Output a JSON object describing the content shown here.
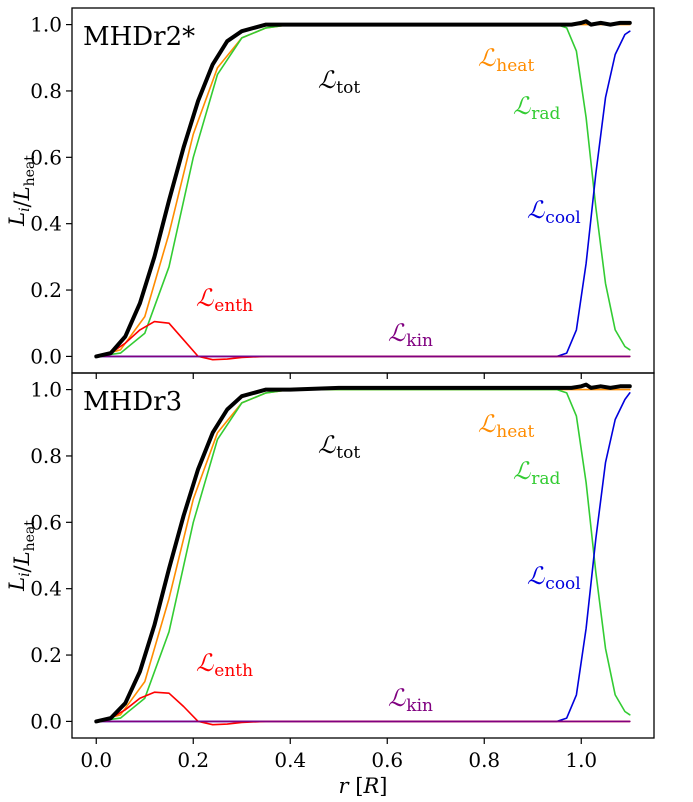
{
  "chart_data": [
    {
      "type": "line",
      "title": "MHDr2*",
      "xlabel": "",
      "ylabel": "L_i/L_heat",
      "xlim": [
        -0.05,
        1.15
      ],
      "ylim": [
        -0.05,
        1.05
      ],
      "y_ticks": [
        "0.0",
        "0.2",
        "0.4",
        "0.6",
        "0.8",
        "1.0"
      ],
      "x_ticks": [],
      "series": [
        {
          "name": "L_heat",
          "label_main": "ℒ",
          "label_sub": "heat",
          "color": "#ff8c00",
          "x": [
            0.0,
            0.05,
            0.1,
            0.15,
            0.2,
            0.25,
            0.3,
            0.35,
            0.4,
            0.5,
            0.6,
            0.7,
            0.8,
            0.9,
            0.95,
            1.0,
            1.05,
            1.1
          ],
          "y": [
            0.0,
            0.02,
            0.12,
            0.37,
            0.67,
            0.87,
            0.96,
            0.99,
            1.0,
            1.0,
            1.0,
            1.0,
            1.0,
            1.0,
            1.0,
            1.0,
            1.0,
            1.0
          ]
        },
        {
          "name": "L_rad",
          "label_main": "ℒ",
          "label_sub": "rad",
          "color": "#33cc33",
          "x": [
            0.0,
            0.05,
            0.1,
            0.15,
            0.2,
            0.25,
            0.3,
            0.35,
            0.4,
            0.5,
            0.6,
            0.7,
            0.8,
            0.9,
            0.95,
            0.97,
            0.99,
            1.01,
            1.03,
            1.05,
            1.07,
            1.09,
            1.1
          ],
          "y": [
            0.0,
            0.01,
            0.07,
            0.27,
            0.6,
            0.85,
            0.96,
            0.99,
            1.0,
            1.0,
            1.0,
            1.0,
            1.0,
            1.0,
            1.0,
            0.99,
            0.92,
            0.72,
            0.45,
            0.22,
            0.08,
            0.03,
            0.02
          ]
        },
        {
          "name": "L_cool",
          "label_main": "ℒ",
          "label_sub": "cool",
          "color": "#0000dd",
          "x": [
            0.0,
            0.2,
            0.4,
            0.6,
            0.8,
            0.9,
            0.95,
            0.97,
            0.99,
            1.01,
            1.03,
            1.05,
            1.07,
            1.09,
            1.1
          ],
          "y": [
            0.0,
            0.0,
            0.0,
            0.0,
            0.0,
            0.0,
            0.0,
            0.01,
            0.08,
            0.28,
            0.55,
            0.78,
            0.91,
            0.97,
            0.98
          ]
        },
        {
          "name": "L_enth",
          "label_main": "ℒ",
          "label_sub": "enth",
          "color": "#ff0000",
          "x": [
            0.0,
            0.03,
            0.06,
            0.09,
            0.12,
            0.15,
            0.18,
            0.21,
            0.24,
            0.27,
            0.3,
            0.35,
            0.4,
            0.6,
            0.8,
            1.0,
            1.1
          ],
          "y": [
            0.0,
            0.01,
            0.04,
            0.08,
            0.105,
            0.1,
            0.05,
            0.0,
            -0.01,
            -0.008,
            -0.003,
            0.0,
            0.0,
            0.0,
            0.0,
            0.0,
            0.0
          ]
        },
        {
          "name": "L_kin",
          "label_main": "ℒ",
          "label_sub": "kin",
          "color": "#800080",
          "x": [
            0.0,
            0.2,
            0.4,
            0.6,
            0.8,
            1.0,
            1.1
          ],
          "y": [
            0.0,
            0.0,
            0.0,
            0.0,
            0.0,
            0.0,
            0.0
          ]
        },
        {
          "name": "L_tot",
          "label_main": "ℒ",
          "label_sub": "tot",
          "color": "#000000",
          "x": [
            0.0,
            0.03,
            0.06,
            0.09,
            0.12,
            0.15,
            0.18,
            0.21,
            0.24,
            0.27,
            0.3,
            0.35,
            0.4,
            0.5,
            0.6,
            0.7,
            0.8,
            0.9,
            0.95,
            0.98,
            1.0,
            1.01,
            1.02,
            1.04,
            1.06,
            1.08,
            1.1
          ],
          "y": [
            0.0,
            0.01,
            0.06,
            0.16,
            0.3,
            0.47,
            0.63,
            0.77,
            0.88,
            0.95,
            0.98,
            1.0,
            1.0,
            1.0,
            1.0,
            1.0,
            1.0,
            1.0,
            1.0,
            1.0,
            1.005,
            1.01,
            1.0,
            1.005,
            1.0,
            1.005,
            1.005
          ]
        }
      ]
    },
    {
      "type": "line",
      "title": "MHDr3",
      "xlabel": "r [R]",
      "ylabel": "L_i/L_heat",
      "xlim": [
        -0.05,
        1.15
      ],
      "ylim": [
        -0.05,
        1.05
      ],
      "y_ticks": [
        "0.0",
        "0.2",
        "0.4",
        "0.6",
        "0.8",
        "1.0"
      ],
      "x_ticks": [
        "0.0",
        "0.2",
        "0.4",
        "0.6",
        "0.8",
        "1.0"
      ],
      "series": [
        {
          "name": "L_heat",
          "label_main": "ℒ",
          "label_sub": "heat",
          "color": "#ff8c00",
          "x": [
            0.0,
            0.05,
            0.1,
            0.15,
            0.2,
            0.25,
            0.3,
            0.35,
            0.4,
            0.5,
            0.6,
            0.7,
            0.8,
            0.9,
            0.95,
            1.0,
            1.05,
            1.1
          ],
          "y": [
            0.0,
            0.02,
            0.12,
            0.37,
            0.67,
            0.87,
            0.96,
            0.99,
            1.0,
            1.0,
            1.0,
            1.0,
            1.0,
            1.0,
            1.0,
            1.0,
            1.0,
            1.0
          ]
        },
        {
          "name": "L_rad",
          "label_main": "ℒ",
          "label_sub": "rad",
          "color": "#33cc33",
          "x": [
            0.0,
            0.05,
            0.1,
            0.15,
            0.2,
            0.25,
            0.3,
            0.35,
            0.4,
            0.5,
            0.6,
            0.7,
            0.8,
            0.9,
            0.95,
            0.97,
            0.99,
            1.01,
            1.03,
            1.05,
            1.07,
            1.09,
            1.1
          ],
          "y": [
            0.0,
            0.01,
            0.07,
            0.27,
            0.6,
            0.85,
            0.96,
            0.99,
            1.0,
            1.0,
            1.0,
            1.0,
            1.0,
            1.0,
            1.0,
            0.99,
            0.92,
            0.72,
            0.45,
            0.22,
            0.08,
            0.03,
            0.02
          ]
        },
        {
          "name": "L_cool",
          "label_main": "ℒ",
          "label_sub": "cool",
          "color": "#0000dd",
          "x": [
            0.0,
            0.2,
            0.4,
            0.6,
            0.8,
            0.9,
            0.95,
            0.97,
            0.99,
            1.01,
            1.03,
            1.05,
            1.07,
            1.09,
            1.1
          ],
          "y": [
            0.0,
            0.0,
            0.0,
            0.0,
            0.0,
            0.0,
            0.0,
            0.01,
            0.08,
            0.28,
            0.55,
            0.78,
            0.91,
            0.97,
            0.99
          ]
        },
        {
          "name": "L_enth",
          "label_main": "ℒ",
          "label_sub": "enth",
          "color": "#ff0000",
          "x": [
            0.0,
            0.03,
            0.06,
            0.09,
            0.12,
            0.15,
            0.18,
            0.21,
            0.24,
            0.27,
            0.3,
            0.35,
            0.4,
            0.6,
            0.8,
            1.0,
            1.1
          ],
          "y": [
            0.0,
            0.01,
            0.035,
            0.07,
            0.088,
            0.085,
            0.045,
            0.0,
            -0.01,
            -0.008,
            -0.003,
            0.0,
            0.0,
            0.0,
            0.0,
            0.0,
            0.0
          ]
        },
        {
          "name": "L_kin",
          "label_main": "ℒ",
          "label_sub": "kin",
          "color": "#800080",
          "x": [
            0.0,
            0.2,
            0.4,
            0.6,
            0.8,
            1.0,
            1.1
          ],
          "y": [
            0.0,
            0.0,
            0.0,
            0.0,
            0.0,
            0.0,
            0.0
          ]
        },
        {
          "name": "L_tot",
          "label_main": "ℒ",
          "label_sub": "tot",
          "color": "#000000",
          "x": [
            0.0,
            0.03,
            0.06,
            0.09,
            0.12,
            0.15,
            0.18,
            0.21,
            0.24,
            0.27,
            0.3,
            0.35,
            0.4,
            0.5,
            0.6,
            0.7,
            0.8,
            0.9,
            0.95,
            0.98,
            1.0,
            1.01,
            1.02,
            1.04,
            1.06,
            1.08,
            1.1
          ],
          "y": [
            0.0,
            0.01,
            0.055,
            0.15,
            0.29,
            0.46,
            0.62,
            0.76,
            0.87,
            0.94,
            0.98,
            1.0,
            1.0,
            1.005,
            1.005,
            1.005,
            1.005,
            1.005,
            1.005,
            1.005,
            1.01,
            1.015,
            1.005,
            1.01,
            1.005,
            1.01,
            1.01
          ]
        }
      ]
    }
  ]
}
